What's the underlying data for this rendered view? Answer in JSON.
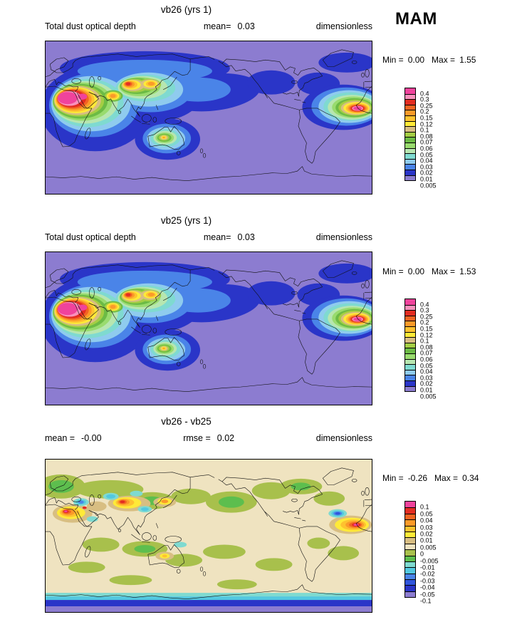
{
  "page": {
    "season_label": "MAM"
  },
  "panels": [
    {
      "title": "vb26 (yrs 1)",
      "subheader": {
        "left_label": "Total dust optical depth",
        "left_value": "",
        "center_label": "mean=",
        "center_value": "0.03",
        "right_label": "dimensionless"
      },
      "stats": {
        "min_label": "Min =",
        "min_value": "0.00",
        "max_label": "Max =",
        "max_value": "1.55"
      },
      "legend": {
        "labels": [
          "0.4",
          "0.3",
          "0.25",
          "0.2",
          "0.15",
          "0.12",
          "0.1",
          "0.08",
          "0.07",
          "0.06",
          "0.05",
          "0.04",
          "0.03",
          "0.02",
          "0.01",
          "0.005"
        ],
        "colors": [
          "#F0439C",
          "#F990BC",
          "#E32D22",
          "#F26422",
          "#FB9A29",
          "#FEC22F",
          "#FFEA38",
          "#D8BE82",
          "#A4CE44",
          "#6CBB45",
          "#99DB6E",
          "#B7E6B0",
          "#7FDAD0",
          "#8FCBEE",
          "#4A84E8",
          "#2A35C8",
          "#8C7CD0"
        ]
      }
    },
    {
      "title": "vb25 (yrs 1)",
      "subheader": {
        "left_label": "Total dust optical depth",
        "left_value": "",
        "center_label": "mean=",
        "center_value": "0.03",
        "right_label": "dimensionless"
      },
      "stats": {
        "min_label": "Min =",
        "min_value": "0.00",
        "max_label": "Max =",
        "max_value": "1.53"
      },
      "legend": {
        "labels": [
          "0.4",
          "0.3",
          "0.25",
          "0.2",
          "0.15",
          "0.12",
          "0.1",
          "0.08",
          "0.07",
          "0.06",
          "0.05",
          "0.04",
          "0.03",
          "0.02",
          "0.01",
          "0.005"
        ],
        "colors": [
          "#F0439C",
          "#F990BC",
          "#E32D22",
          "#F26422",
          "#FB9A29",
          "#FEC22F",
          "#FFEA38",
          "#D8BE82",
          "#A4CE44",
          "#6CBB45",
          "#99DB6E",
          "#B7E6B0",
          "#7FDAD0",
          "#8FCBEE",
          "#4A84E8",
          "#2A35C8",
          "#8C7CD0"
        ]
      }
    },
    {
      "title": "vb26 - vb25",
      "subheader": {
        "left_label": "mean =",
        "left_value": "-0.00",
        "center_label": "rmse =",
        "center_value": "0.02",
        "right_label": "dimensionless"
      },
      "stats": {
        "min_label": "Min =",
        "min_value": "-0.26",
        "max_label": "Max =",
        "max_value": "0.34"
      },
      "legend": {
        "labels": [
          "0.1",
          "0.05",
          "0.04",
          "0.03",
          "0.02",
          "0.01",
          "0.005",
          "0",
          "-0.005",
          "-0.01",
          "-0.02",
          "-0.03",
          "-0.04",
          "-0.05",
          "-0.1"
        ],
        "colors": [
          "#F0439C",
          "#E32D22",
          "#F26422",
          "#FB9A29",
          "#FEC22F",
          "#FFEA38",
          "#D8BE82",
          "#EFE3C0",
          "#A8C04C",
          "#5DBE4E",
          "#7FDAD0",
          "#52C8E0",
          "#4A84E8",
          "#2F55DC",
          "#2A35C8",
          "#8C7CD0"
        ]
      }
    }
  ],
  "chart_data": [
    {
      "type": "heatmap",
      "title": "vb26 (yrs 1)",
      "field": "Total dust optical depth",
      "units": "dimensionless",
      "season": "MAM",
      "mean": 0.03,
      "min": 0.0,
      "max": 1.55,
      "contour_levels": [
        0.005,
        0.01,
        0.02,
        0.03,
        0.04,
        0.05,
        0.06,
        0.07,
        0.08,
        0.1,
        0.12,
        0.15,
        0.2,
        0.25,
        0.3,
        0.4
      ]
    },
    {
      "type": "heatmap",
      "title": "vb25 (yrs 1)",
      "field": "Total dust optical depth",
      "units": "dimensionless",
      "season": "MAM",
      "mean": 0.03,
      "min": 0.0,
      "max": 1.53,
      "contour_levels": [
        0.005,
        0.01,
        0.02,
        0.03,
        0.04,
        0.05,
        0.06,
        0.07,
        0.08,
        0.1,
        0.12,
        0.15,
        0.2,
        0.25,
        0.3,
        0.4
      ]
    },
    {
      "type": "heatmap",
      "title": "vb26 - vb25",
      "units": "dimensionless",
      "season": "MAM",
      "mean": -0.0,
      "rmse": 0.02,
      "min": -0.26,
      "max": 0.34,
      "contour_levels": [
        -0.1,
        -0.05,
        -0.04,
        -0.03,
        -0.02,
        -0.01,
        -0.005,
        0,
        0.005,
        0.01,
        0.02,
        0.03,
        0.04,
        0.05,
        0.1
      ]
    }
  ]
}
